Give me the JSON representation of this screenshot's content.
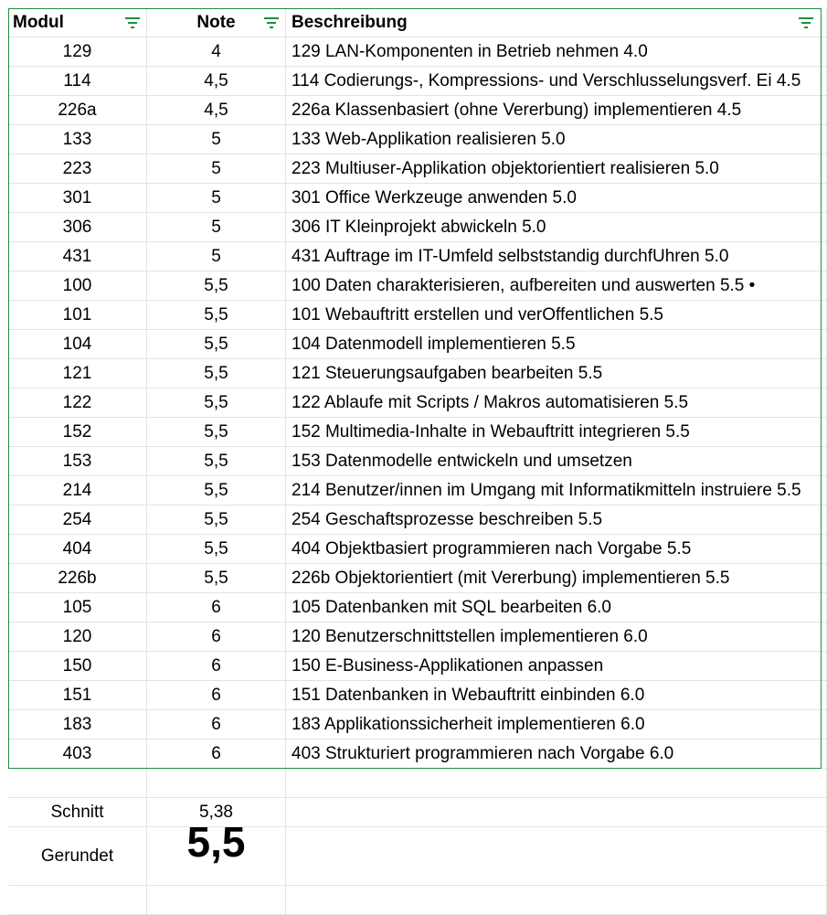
{
  "headers": {
    "modul": "Modul",
    "note": "Note",
    "beschreibung": "Beschreibung"
  },
  "icons": {
    "filter": "filter-icon",
    "filter_color": "#1e8e3e"
  },
  "rows": [
    {
      "modul": "129",
      "note": "4",
      "beschreibung": "129 LAN-Komponenten in Betrieb nehmen 4.0"
    },
    {
      "modul": "114",
      "note": "4,5",
      "beschreibung": "114 Codierungs-, Kompressions- und Verschlusselungsverf. Ei 4.5"
    },
    {
      "modul": "226a",
      "note": "4,5",
      "beschreibung": "226a Klassenbasiert (ohne Vererbung) implementieren 4.5"
    },
    {
      "modul": "133",
      "note": "5",
      "beschreibung": "133 Web-Applikation realisieren 5.0"
    },
    {
      "modul": "223",
      "note": "5",
      "beschreibung": "223 Multiuser-Applikation objektorientiert realisieren 5.0"
    },
    {
      "modul": "301",
      "note": "5",
      "beschreibung": "301 Office Werkzeuge anwenden 5.0"
    },
    {
      "modul": "306",
      "note": "5",
      "beschreibung": "306 IT Kleinprojekt abwickeln 5.0"
    },
    {
      "modul": "431",
      "note": "5",
      "beschreibung": "431 Auftrage im IT-Umfeld selbststandig durchfUhren 5.0"
    },
    {
      "modul": "100",
      "note": "5,5",
      "beschreibung": "100 Daten charakterisieren, aufbereiten und auswerten 5.5 •"
    },
    {
      "modul": "101",
      "note": "5,5",
      "beschreibung": "101 Webauftritt erstellen und verOffentlichen 5.5"
    },
    {
      "modul": "104",
      "note": "5,5",
      "beschreibung": "104 Datenmodell implementieren 5.5"
    },
    {
      "modul": "121",
      "note": "5,5",
      "beschreibung": "121 Steuerungsaufgaben bearbeiten 5.5"
    },
    {
      "modul": "122",
      "note": "5,5",
      "beschreibung": "122 Ablaufe mit Scripts / Makros automatisieren 5.5"
    },
    {
      "modul": "152",
      "note": "5,5",
      "beschreibung": "152 Multimedia-Inhalte in Webauftritt integrieren 5.5"
    },
    {
      "modul": "153",
      "note": "5,5",
      "beschreibung": "153 Datenmodelle entwickeln und umsetzen"
    },
    {
      "modul": "214",
      "note": "5,5",
      "beschreibung": "214 Benutzer/innen im Umgang mit Informatikmitteln instruiere 5.5"
    },
    {
      "modul": "254",
      "note": "5,5",
      "beschreibung": "254 Geschaftsprozesse beschreiben 5.5"
    },
    {
      "modul": "404",
      "note": "5,5",
      "beschreibung": "404 Objektbasiert programmieren nach Vorgabe 5.5"
    },
    {
      "modul": "226b",
      "note": "5,5",
      "beschreibung": "226b Objektorientiert (mit Vererbung) implementieren 5.5"
    },
    {
      "modul": "105",
      "note": "6",
      "beschreibung": "105 Datenbanken mit SQL bearbeiten 6.0"
    },
    {
      "modul": "120",
      "note": "6",
      "beschreibung": "120 Benutzerschnittstellen implementieren 6.0"
    },
    {
      "modul": "150",
      "note": "6",
      "beschreibung": "150 E-Business-Applikationen anpassen"
    },
    {
      "modul": "151",
      "note": "6",
      "beschreibung": "151 Datenbanken in Webauftritt einbinden 6.0"
    },
    {
      "modul": "183",
      "note": "6",
      "beschreibung": "183 Applikationssicherheit implementieren 6.0"
    },
    {
      "modul": "403",
      "note": "6",
      "beschreibung": "403 Strukturiert programmieren nach Vorgabe 6.0"
    }
  ],
  "summary": {
    "schnitt_label": "Schnitt",
    "schnitt_value": "5,38",
    "gerundet_label": "Gerundet",
    "gerundet_value": "5,5"
  }
}
